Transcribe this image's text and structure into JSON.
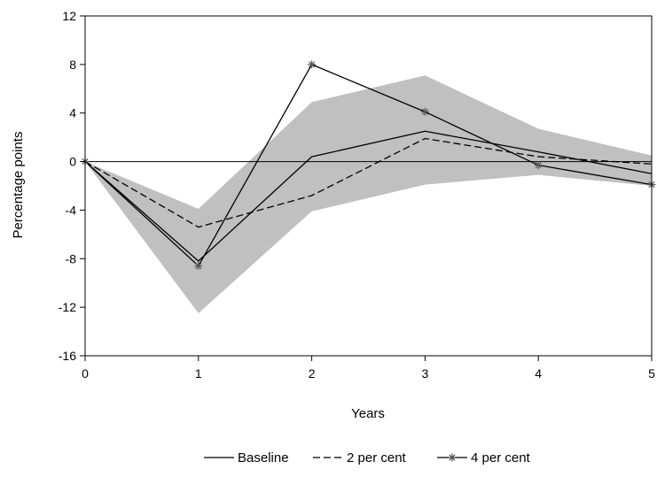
{
  "chart_data": {
    "type": "line",
    "title": "",
    "xlabel": "Years",
    "ylabel": "Percentage points",
    "xlim": [
      0,
      5
    ],
    "ylim": [
      -16,
      12
    ],
    "x": [
      0,
      1,
      2,
      3,
      4,
      5
    ],
    "xticks": [
      "0",
      "1",
      "2",
      "3",
      "4",
      "5"
    ],
    "yticks": [
      "12",
      "8",
      "4",
      "0",
      "-4",
      "-8",
      "-12",
      "-16"
    ],
    "band": {
      "upper": [
        0,
        -3.9,
        4.9,
        7.1,
        2.7,
        0.5
      ],
      "lower": [
        0,
        -12.5,
        -4.1,
        -1.9,
        -1.1,
        -2.0
      ],
      "color": "#c0c0c0"
    },
    "zero_line": true,
    "series": [
      {
        "name": "Baseline",
        "style": "solid",
        "values": [
          0,
          -8.2,
          0.4,
          2.5,
          0.8,
          -1.0
        ]
      },
      {
        "name": "2 per cent",
        "style": "dashed",
        "values": [
          0,
          -5.4,
          -2.8,
          1.9,
          0.4,
          -0.2
        ]
      },
      {
        "name": "4 per cent",
        "style": "solid-asterisk",
        "values": [
          0,
          -8.6,
          8.0,
          4.1,
          -0.3,
          -1.9
        ]
      }
    ],
    "legend_position": "bottom",
    "grid": false
  }
}
